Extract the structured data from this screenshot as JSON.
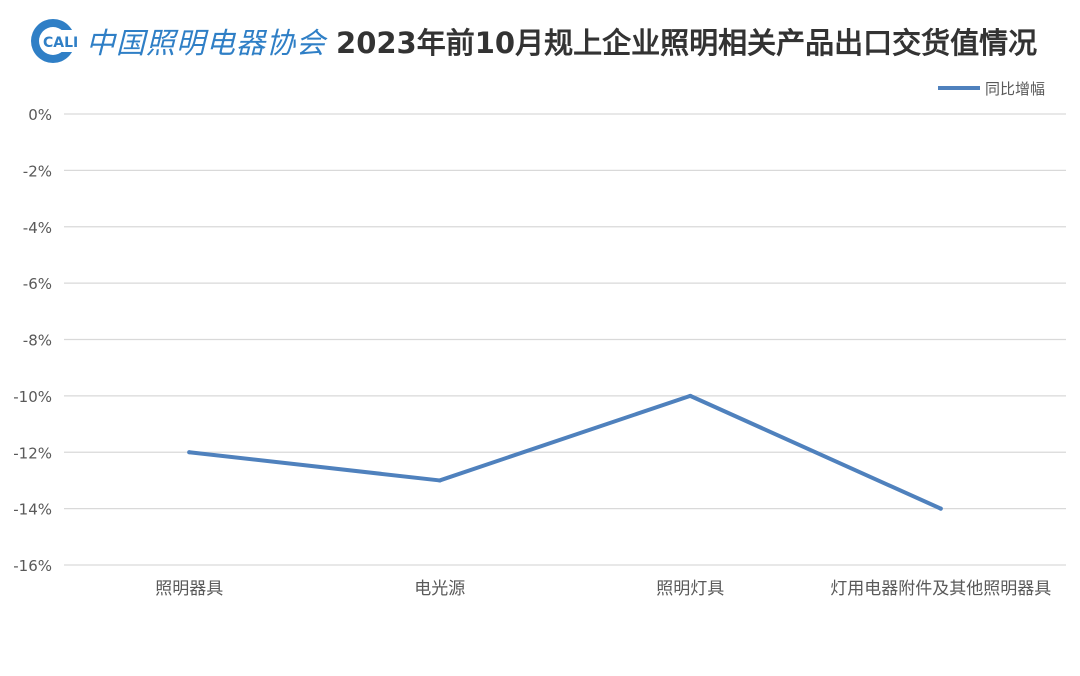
{
  "header": {
    "logo_text": "CALI",
    "org_name": "中国照明电器协会",
    "title": "2023年前10月规上企业照明相关产品出口交货值情况"
  },
  "colors": {
    "series": "#4f81bd",
    "grid": "#d9d9d9",
    "text": "#595959",
    "logo": "#2f7fc6"
  },
  "chart_data": {
    "type": "line",
    "title": "2023年前10月规上企业照明相关产品出口交货值情况",
    "categories": [
      "照明器具",
      "电光源",
      "照明灯具",
      "灯用电器附件及其他照明器具"
    ],
    "series": [
      {
        "name": "同比增幅",
        "values": [
          -12,
          -13,
          -10,
          -14
        ],
        "color": "#4f81bd"
      }
    ],
    "y_ticks": [
      "0%",
      "-2%",
      "-4%",
      "-6%",
      "-8%",
      "-10%",
      "-12%",
      "-14%",
      "-16%"
    ],
    "ylim": [
      -16,
      0
    ],
    "grid": true,
    "legend_position": "top-right"
  }
}
